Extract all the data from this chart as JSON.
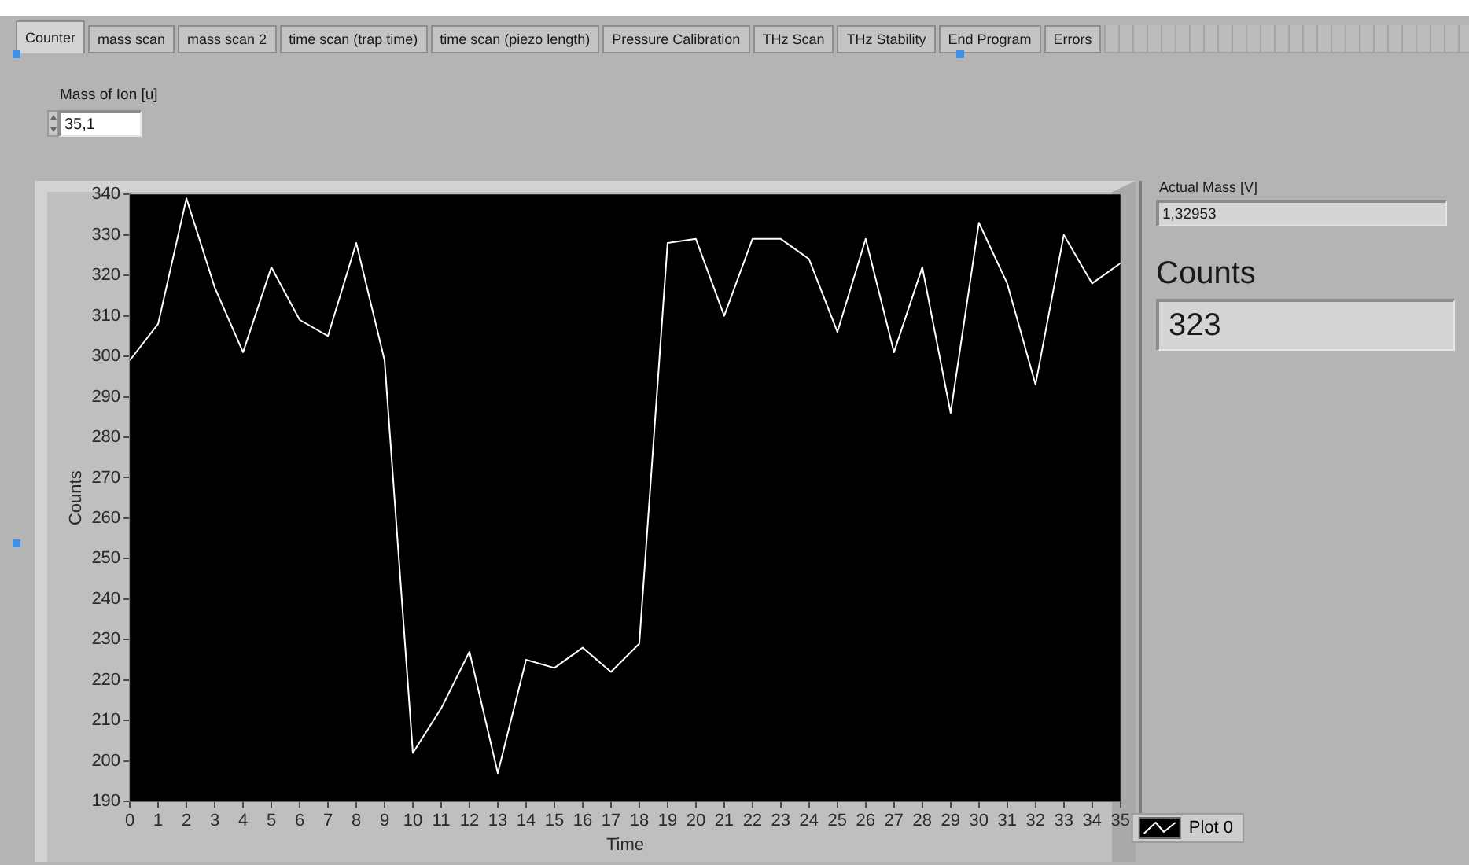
{
  "chart_data": {
    "type": "line",
    "xlabel": "Time",
    "ylabel": "Counts",
    "x": [
      0,
      1,
      2,
      3,
      4,
      5,
      6,
      7,
      8,
      9,
      10,
      11,
      12,
      13,
      14,
      15,
      16,
      17,
      18,
      19,
      20,
      21,
      22,
      23,
      24,
      25,
      26,
      27,
      28,
      29,
      30,
      31,
      32,
      33,
      34,
      35
    ],
    "series": [
      {
        "name": "Plot 0",
        "color": "#ffffff",
        "values": [
          299,
          308,
          339,
          317,
          301,
          322,
          309,
          305,
          328,
          299,
          202,
          213,
          227,
          197,
          225,
          223,
          228,
          222,
          229,
          328,
          329,
          310,
          329,
          329,
          324,
          306,
          329,
          301,
          322,
          286,
          333,
          318,
          293,
          330,
          318,
          323
        ]
      }
    ],
    "xlim": [
      0,
      35
    ],
    "xticks": [
      0,
      1,
      2,
      3,
      4,
      5,
      6,
      7,
      8,
      9,
      10,
      11,
      12,
      13,
      14,
      15,
      16,
      17,
      18,
      19,
      20,
      21,
      22,
      23,
      24,
      25,
      26,
      27,
      28,
      29,
      30,
      31,
      32,
      33,
      34,
      35
    ],
    "ylim": [
      190,
      340
    ],
    "yticks": [
      190,
      200,
      210,
      220,
      230,
      240,
      250,
      260,
      270,
      280,
      290,
      300,
      310,
      320,
      330,
      340
    ],
    "legend": "bottom right",
    "marker": "none",
    "annotations": [
      "Counter",
      "mass scan",
      "mass scan 2",
      "time scan (trap time)",
      "time scan (piezo length)",
      "Pressure Calibration",
      "THz Scan",
      "THz Stability",
      "End Program",
      "Errors",
      "Mass of Ion [u]",
      "35,1",
      "Actual Mass [V]",
      "1,32953",
      "Counts",
      "323"
    ]
  }
}
